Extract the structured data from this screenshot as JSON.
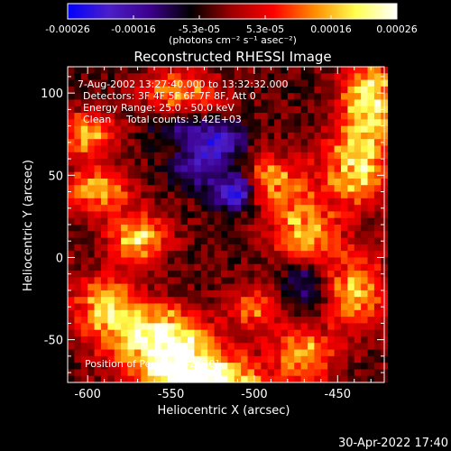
{
  "chart_data": {
    "type": "heatmap",
    "title": "Reconstructed RHESSI Image",
    "xlabel": "Heliocentric X (arcsec)",
    "ylabel": "Heliocentric Y (arcsec)",
    "xlim": [
      -612,
      -422
    ],
    "ylim": [
      -76,
      116
    ],
    "x_ticks": [
      -600,
      -550,
      -500,
      -450
    ],
    "y_ticks": [
      100,
      50,
      0,
      -50
    ],
    "colorbar": {
      "range": [
        -0.00026,
        0.00026
      ],
      "ticks": [
        "-0.00026",
        "-0.00016",
        "-5.3e-05",
        "5.3e-05",
        "0.00016",
        "0.00026"
      ],
      "units": "(photons cm⁻² s⁻¹ asec⁻²)",
      "colormap": [
        "#0000ff",
        "#4b1ec8",
        "#3c008c",
        "#000000",
        "#a00000",
        "#ff0000",
        "#ff8c00",
        "#ffff50",
        "#ffffff"
      ]
    },
    "annotations": [
      "7-Aug-2002 13:27:40.000 to 13:32:32.000",
      "Detectors: 3F 4F 5F 6F 7F 8F, Att 0",
      "Energy Range: 25.0 - 50.0 keV",
      "Clean",
      "Total counts: 3.42E+03",
      "Position of Peak: [-542,-70]"
    ],
    "peak": [
      -542,
      -70
    ],
    "sources": [
      {
        "x": -545,
        "y": -65,
        "amp": 1.0,
        "sx": 22,
        "sy": 14
      },
      {
        "x": -560,
        "y": -45,
        "amp": 0.8,
        "sx": 18,
        "sy": 12
      },
      {
        "x": -590,
        "y": -30,
        "amp": 0.75,
        "sx": 14,
        "sy": 14
      },
      {
        "x": -520,
        "y": -75,
        "amp": 0.7,
        "sx": 20,
        "sy": 8
      },
      {
        "x": -570,
        "y": 12,
        "amp": 0.85,
        "sx": 12,
        "sy": 10
      },
      {
        "x": -595,
        "y": 40,
        "amp": 0.7,
        "sx": 14,
        "sy": 10
      },
      {
        "x": -600,
        "y": 75,
        "amp": 0.7,
        "sx": 12,
        "sy": 10
      },
      {
        "x": -545,
        "y": 100,
        "amp": 0.65,
        "sx": 16,
        "sy": 10
      },
      {
        "x": -490,
        "y": 45,
        "amp": 0.7,
        "sx": 14,
        "sy": 12
      },
      {
        "x": -470,
        "y": 15,
        "amp": 0.7,
        "sx": 14,
        "sy": 14
      },
      {
        "x": -440,
        "y": 55,
        "amp": 0.85,
        "sx": 14,
        "sy": 16
      },
      {
        "x": -430,
        "y": 95,
        "amp": 0.95,
        "sx": 12,
        "sy": 18
      },
      {
        "x": -440,
        "y": -20,
        "amp": 0.75,
        "sx": 12,
        "sy": 16
      },
      {
        "x": -470,
        "y": -60,
        "amp": 0.7,
        "sx": 14,
        "sy": 12
      },
      {
        "x": -500,
        "y": -30,
        "amp": 0.55,
        "sx": 10,
        "sy": 10
      }
    ],
    "negatives": [
      {
        "x": -510,
        "y": 40,
        "amp": 0.9,
        "sx": 10,
        "sy": 8
      },
      {
        "x": -520,
        "y": 70,
        "amp": 0.7,
        "sx": 10,
        "sy": 8
      },
      {
        "x": -535,
        "y": 55,
        "amp": 0.5,
        "sx": 10,
        "sy": 8
      },
      {
        "x": -545,
        "y": 80,
        "amp": 0.4,
        "sx": 12,
        "sy": 8
      },
      {
        "x": -470,
        "y": -15,
        "amp": 0.4,
        "sx": 10,
        "sy": 10
      }
    ]
  },
  "footer": {
    "timestamp": "30-Apr-2022 17:40"
  }
}
